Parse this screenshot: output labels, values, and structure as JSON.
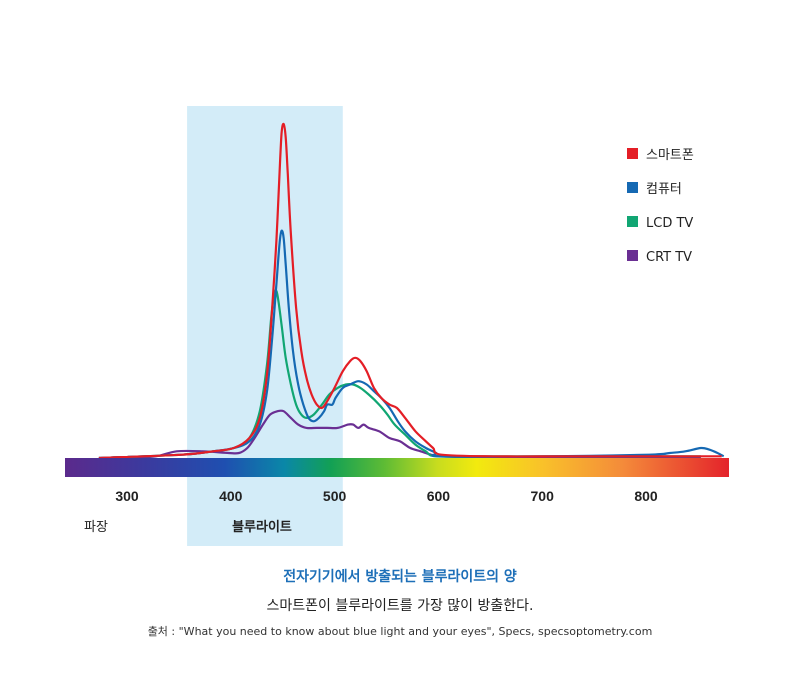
{
  "chart_data": {
    "type": "line",
    "x_tick_labels": [
      "300",
      "400",
      "500",
      "600",
      "700",
      "800"
    ],
    "x_ticks": [
      300,
      400,
      500,
      600,
      700,
      800
    ],
    "xlim": [
      240,
      880
    ],
    "ylim": [
      0,
      1
    ],
    "axis_label": "파장",
    "highlight": {
      "label": "블루라이트",
      "from": 355,
      "to": 505,
      "color": "#d3ecf8"
    },
    "spectrum_bar": true,
    "legend_position": "top-right",
    "series": [
      {
        "name": "스마트폰",
        "color": "#e41e26",
        "points": [
          [
            270,
            0
          ],
          [
            350,
            0.01
          ],
          [
            380,
            0.02
          ],
          [
            400,
            0.03
          ],
          [
            415,
            0.06
          ],
          [
            425,
            0.12
          ],
          [
            432,
            0.25
          ],
          [
            437,
            0.45
          ],
          [
            441,
            0.65
          ],
          [
            444,
            0.85
          ],
          [
            446,
            0.97
          ],
          [
            448,
            1.0
          ],
          [
            450,
            0.96
          ],
          [
            452,
            0.85
          ],
          [
            455,
            0.67
          ],
          [
            460,
            0.45
          ],
          [
            465,
            0.32
          ],
          [
            470,
            0.24
          ],
          [
            475,
            0.19
          ],
          [
            480,
            0.16
          ],
          [
            485,
            0.15
          ],
          [
            490,
            0.17
          ],
          [
            497,
            0.21
          ],
          [
            505,
            0.26
          ],
          [
            512,
            0.29
          ],
          [
            517,
            0.3
          ],
          [
            522,
            0.29
          ],
          [
            528,
            0.26
          ],
          [
            535,
            0.21
          ],
          [
            542,
            0.18
          ],
          [
            550,
            0.16
          ],
          [
            557,
            0.15
          ],
          [
            565,
            0.12
          ],
          [
            575,
            0.08
          ],
          [
            585,
            0.05
          ],
          [
            592,
            0.03
          ],
          [
            600,
            0.01
          ],
          [
            650,
            0.005
          ],
          [
            720,
            0.005
          ],
          [
            800,
            0.005
          ],
          [
            870,
            0.005
          ]
        ]
      },
      {
        "name": "컴퓨터",
        "color": "#1569b3",
        "points": [
          [
            270,
            0
          ],
          [
            350,
            0.01
          ],
          [
            380,
            0.02
          ],
          [
            400,
            0.03
          ],
          [
            415,
            0.05
          ],
          [
            425,
            0.1
          ],
          [
            432,
            0.2
          ],
          [
            437,
            0.36
          ],
          [
            441,
            0.52
          ],
          [
            444,
            0.64
          ],
          [
            446,
            0.68
          ],
          [
            448,
            0.66
          ],
          [
            450,
            0.58
          ],
          [
            453,
            0.45
          ],
          [
            457,
            0.32
          ],
          [
            462,
            0.22
          ],
          [
            467,
            0.16
          ],
          [
            472,
            0.12
          ],
          [
            477,
            0.11
          ],
          [
            482,
            0.12
          ],
          [
            487,
            0.14
          ],
          [
            490,
            0.16
          ],
          [
            495,
            0.16
          ],
          [
            498,
            0.18
          ],
          [
            505,
            0.21
          ],
          [
            512,
            0.22
          ],
          [
            520,
            0.23
          ],
          [
            528,
            0.22
          ],
          [
            535,
            0.2
          ],
          [
            542,
            0.18
          ],
          [
            550,
            0.15
          ],
          [
            558,
            0.11
          ],
          [
            565,
            0.08
          ],
          [
            575,
            0.05
          ],
          [
            585,
            0.03
          ],
          [
            595,
            0.015
          ],
          [
            600,
            0.005
          ],
          [
            700,
            0.005
          ],
          [
            800,
            0.01
          ],
          [
            820,
            0.015
          ],
          [
            835,
            0.02
          ],
          [
            850,
            0.03
          ],
          [
            858,
            0.025
          ],
          [
            866,
            0.015
          ],
          [
            872,
            0.005
          ]
        ]
      },
      {
        "name": "LCD TV",
        "color": "#11a673",
        "points": [
          [
            270,
            0
          ],
          [
            350,
            0.01
          ],
          [
            380,
            0.02
          ],
          [
            400,
            0.03
          ],
          [
            415,
            0.06
          ],
          [
            425,
            0.14
          ],
          [
            432,
            0.28
          ],
          [
            436,
            0.42
          ],
          [
            439,
            0.49
          ],
          [
            441,
            0.5
          ],
          [
            443,
            0.47
          ],
          [
            446,
            0.4
          ],
          [
            450,
            0.3
          ],
          [
            455,
            0.22
          ],
          [
            460,
            0.16
          ],
          [
            465,
            0.13
          ],
          [
            470,
            0.12
          ],
          [
            477,
            0.13
          ],
          [
            485,
            0.16
          ],
          [
            492,
            0.19
          ],
          [
            500,
            0.21
          ],
          [
            508,
            0.22
          ],
          [
            515,
            0.22
          ],
          [
            522,
            0.21
          ],
          [
            530,
            0.19
          ],
          [
            540,
            0.16
          ],
          [
            548,
            0.13
          ],
          [
            555,
            0.1
          ],
          [
            565,
            0.07
          ],
          [
            575,
            0.04
          ],
          [
            585,
            0.02
          ],
          [
            595,
            0.005
          ],
          [
            640,
            0.005
          ],
          [
            700,
            0.005
          ],
          [
            800,
            0.005
          ],
          [
            850,
            0.005
          ]
        ]
      },
      {
        "name": "CRT TV",
        "color": "#6a2f93",
        "points": [
          [
            270,
            0
          ],
          [
            300,
            0
          ],
          [
            325,
            0.005
          ],
          [
            345,
            0.02
          ],
          [
            370,
            0.02
          ],
          [
            395,
            0.015
          ],
          [
            405,
            0.015
          ],
          [
            413,
            0.03
          ],
          [
            420,
            0.06
          ],
          [
            428,
            0.1
          ],
          [
            435,
            0.13
          ],
          [
            442,
            0.14
          ],
          [
            448,
            0.14
          ],
          [
            455,
            0.12
          ],
          [
            462,
            0.1
          ],
          [
            470,
            0.09
          ],
          [
            480,
            0.09
          ],
          [
            490,
            0.09
          ],
          [
            500,
            0.09
          ],
          [
            510,
            0.1
          ],
          [
            515,
            0.1
          ],
          [
            520,
            0.09
          ],
          [
            525,
            0.1
          ],
          [
            530,
            0.09
          ],
          [
            540,
            0.08
          ],
          [
            550,
            0.06
          ],
          [
            560,
            0.05
          ],
          [
            570,
            0.03
          ],
          [
            580,
            0.02
          ],
          [
            590,
            0.01
          ],
          [
            600,
            0.005
          ],
          [
            650,
            0
          ],
          [
            700,
            0
          ],
          [
            800,
            0
          ],
          [
            850,
            0
          ]
        ]
      }
    ]
  },
  "caption": {
    "title": "전자기기에서 방출되는 블루라이트의 양",
    "subtitle": "스마트폰이 블루라이트를 가장 많이 방출한다.",
    "source": "출처 : \"What you need to know about blue light and your eyes\", Specs, specsoptometry.com"
  }
}
